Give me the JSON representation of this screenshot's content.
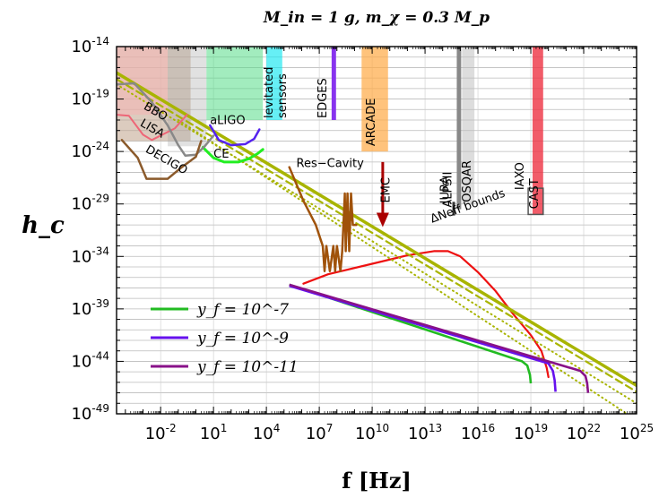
{
  "chart_data": {
    "type": "line",
    "title": "M_in = 1 g, m_χ = 0.3 M_p",
    "xlabel": "f [Hz]",
    "ylabel": "h_c",
    "x_scale": "log",
    "y_scale": "log",
    "xlim_log10": [
      -4.5,
      25
    ],
    "ylim_log10": [
      -49,
      -14
    ],
    "x_ticks": [
      {
        "exp": -2,
        "label_base": "10",
        "label_exp": "-2"
      },
      {
        "exp": 1,
        "label_base": "10",
        "label_exp": "1"
      },
      {
        "exp": 4,
        "label_base": "10",
        "label_exp": "4"
      },
      {
        "exp": 7,
        "label_base": "10",
        "label_exp": "7"
      },
      {
        "exp": 10,
        "label_base": "10",
        "label_exp": "10"
      },
      {
        "exp": 13,
        "label_base": "10",
        "label_exp": "13"
      },
      {
        "exp": 16,
        "label_base": "10",
        "label_exp": "16"
      },
      {
        "exp": 19,
        "label_base": "10",
        "label_exp": "19"
      },
      {
        "exp": 22,
        "label_base": "10",
        "label_exp": "22"
      },
      {
        "exp": 25,
        "label_base": "10",
        "label_exp": "25"
      }
    ],
    "y_ticks": [
      {
        "exp": -14,
        "label_base": "10",
        "label_exp": "-14"
      },
      {
        "exp": -19,
        "label_base": "10",
        "label_exp": "-19"
      },
      {
        "exp": -24,
        "label_base": "10",
        "label_exp": "-24"
      },
      {
        "exp": -29,
        "label_base": "10",
        "label_exp": "-29"
      },
      {
        "exp": -34,
        "label_base": "10",
        "label_exp": "-34"
      },
      {
        "exp": -39,
        "label_base": "10",
        "label_exp": "-39"
      },
      {
        "exp": -44,
        "label_base": "10",
        "label_exp": "-44"
      },
      {
        "exp": -49,
        "label_base": "10",
        "label_exp": "-49"
      }
    ],
    "grid": true,
    "legend_position": "bottom-left",
    "series": [
      {
        "name": "y_f = 10^-7",
        "color": "#22bb22",
        "points_log10": [
          [
            5.3,
            -36.7
          ],
          [
            18.5,
            -44.0
          ],
          [
            18.8,
            -44.4
          ],
          [
            18.95,
            -45.3
          ],
          [
            19.0,
            -46.1
          ]
        ]
      },
      {
        "name": "y_f = 10^-9",
        "color": "#6611ee",
        "points_log10": [
          [
            5.3,
            -36.8
          ],
          [
            20.0,
            -44.2
          ],
          [
            20.25,
            -44.9
          ],
          [
            20.35,
            -45.8
          ],
          [
            20.4,
            -46.9
          ]
        ]
      },
      {
        "name": "y_f = 10^-11",
        "color": "#881188",
        "points_log10": [
          [
            5.3,
            -36.7
          ],
          [
            21.8,
            -44.9
          ],
          [
            22.1,
            -45.4
          ],
          [
            22.2,
            -46.1
          ],
          [
            22.25,
            -47.0
          ]
        ]
      }
    ],
    "extra_curves": [
      {
        "id": "red-signal",
        "color": "#ee1111",
        "points_log10": [
          [
            6.1,
            -36.6
          ],
          [
            7.5,
            -35.7
          ],
          [
            10.0,
            -34.7
          ],
          [
            12.0,
            -33.9
          ],
          [
            13.5,
            -33.5
          ],
          [
            14.3,
            -33.5
          ],
          [
            15.0,
            -34.0
          ],
          [
            16.0,
            -35.5
          ],
          [
            17.0,
            -37.3
          ],
          [
            18.0,
            -39.5
          ],
          [
            19.0,
            -41.5
          ],
          [
            19.6,
            -43.0
          ],
          [
            19.9,
            -44.6
          ],
          [
            20.0,
            -45.5
          ]
        ]
      },
      {
        "id": "delta-neff-bound",
        "color": "#a8b400",
        "width": 3.5,
        "points_log10": [
          [
            -4.5,
            -16.5
          ],
          [
            25,
            -46.3
          ]
        ]
      },
      {
        "id": "delta-neff-bound-dashed",
        "color": "#a8b400",
        "width": 2.2,
        "dash": "8,5",
        "points_log10": [
          [
            -4.5,
            -17.1
          ],
          [
            25,
            -46.9
          ]
        ]
      },
      {
        "id": "delta-neff-bound-dotted",
        "color": "#a8b400",
        "width": 2.0,
        "dash": "1,4",
        "points_log10": [
          [
            -4.5,
            -17.6
          ],
          [
            25,
            -48.0
          ]
        ]
      },
      {
        "id": "delta-neff-bound-dotted-lower",
        "color": "#a8b400",
        "width": 2.0,
        "dash": "1,4",
        "points_log10": [
          [
            -1.0,
            -21.0
          ],
          [
            25,
            -49.6
          ]
        ]
      },
      {
        "id": "res-cavity-curve",
        "color": "#a0520a",
        "width": 2.5,
        "points_log10": [
          [
            5.3,
            -25.5
          ],
          [
            6.1,
            -28.7
          ],
          [
            6.8,
            -31.0
          ],
          [
            7.2,
            -33.0
          ],
          [
            7.3,
            -35.4
          ],
          [
            7.4,
            -33.0
          ],
          [
            7.6,
            -35.4
          ],
          [
            7.8,
            -33.0
          ],
          [
            7.9,
            -35.4
          ],
          [
            8.0,
            -33.0
          ],
          [
            8.2,
            -35.4
          ],
          [
            8.3,
            -33.5
          ],
          [
            8.45,
            -28.0
          ],
          [
            8.5,
            -33.5
          ],
          [
            8.6,
            -28.0
          ],
          [
            8.7,
            -33.5
          ],
          [
            8.8,
            -28.0
          ],
          [
            8.9,
            -31.0
          ],
          [
            9.1,
            -31.0
          ]
        ]
      },
      {
        "id": "aligo-curve",
        "color": "#5522ee",
        "width": 2.5,
        "points_log10": [
          [
            0.8,
            -21.5
          ],
          [
            1.3,
            -22.9
          ],
          [
            2.0,
            -23.4
          ],
          [
            2.8,
            -23.3
          ],
          [
            3.3,
            -22.8
          ],
          [
            3.6,
            -21.9
          ]
        ]
      },
      {
        "id": "ce-curve",
        "color": "#22ee22",
        "width": 3,
        "points_log10": [
          [
            0.4,
            -23.6
          ],
          [
            1.0,
            -24.6
          ],
          [
            1.6,
            -25.0
          ],
          [
            2.4,
            -25.0
          ],
          [
            3.0,
            -24.7
          ],
          [
            3.5,
            -24.2
          ],
          [
            3.8,
            -23.8
          ]
        ]
      },
      {
        "id": "lisa-curve",
        "color": "#ee6677",
        "width": 2,
        "points_log10": [
          [
            -4.5,
            -20.5
          ],
          [
            -3.8,
            -20.6
          ],
          [
            -3.0,
            -22.4
          ],
          [
            -2.5,
            -22.9
          ],
          [
            -1.2,
            -21.8
          ],
          [
            -0.5,
            -20.5
          ]
        ]
      },
      {
        "id": "bbo-curve",
        "color": "#888888",
        "width": 2.5,
        "points_log10": [
          [
            -4.5,
            -17.6
          ],
          [
            -3.5,
            -17.5
          ],
          [
            -2.5,
            -19.3
          ],
          [
            -1.6,
            -21.5
          ],
          [
            -1.0,
            -23.4
          ],
          [
            -0.6,
            -24.4
          ],
          [
            0.0,
            -24.3
          ],
          [
            0.5,
            -23.5
          ],
          [
            1.0,
            -22.5
          ]
        ]
      },
      {
        "id": "decigo-curve",
        "color": "#8b5a2b",
        "width": 2.5,
        "points_log10": [
          [
            -4.2,
            -22.9
          ],
          [
            -3.3,
            -24.6
          ],
          [
            -2.8,
            -26.6
          ],
          [
            -1.6,
            -26.6
          ],
          [
            -0.8,
            -25.5
          ],
          [
            0.0,
            -24.5
          ],
          [
            0.3,
            -23.0
          ]
        ]
      }
    ],
    "bands": [
      {
        "label": "levitated",
        "label2": "sensors",
        "color": "#00e5ee",
        "opacity": 0.6,
        "x_log10": [
          4.0,
          4.9
        ],
        "y_log10": [
          -14,
          -21
        ]
      },
      {
        "label": "EDGES",
        "color": "#8833ee",
        "x_log10": [
          7.7,
          7.95
        ],
        "y_log10": [
          -14,
          -21
        ],
        "style": "line"
      },
      {
        "label": "ARCADE",
        "color": "#ffaa44",
        "opacity": 0.7,
        "x_log10": [
          9.4,
          10.9
        ],
        "y_log10": [
          -14,
          -24
        ]
      },
      {
        "label": "OSQAR",
        "color": "#bbbbbb",
        "opacity": 0.5,
        "x_log10": [
          15.1,
          15.8
        ],
        "y_log10": [
          -14,
          -29
        ]
      },
      {
        "label": "ALPSII",
        "color": "#888888",
        "x_log10": [
          14.8,
          15.05
        ],
        "y_log10": [
          -14,
          -29.5
        ],
        "style": "line"
      },
      {
        "label": "JURA",
        "color": "#333333",
        "x_log10": [
          14.55,
          14.7
        ],
        "y_log10": [
          -28.8,
          -30.1
        ],
        "style": "line"
      },
      {
        "label": "CAST",
        "color": "#ee3344",
        "opacity": 0.8,
        "x_log10": [
          19.1,
          19.7
        ],
        "y_log10": [
          -14,
          -30
        ]
      },
      {
        "label": "IAXO",
        "color": "#555555",
        "x_log10": [
          18.85,
          19.7
        ],
        "y_log10": [
          -27.5,
          -30
        ],
        "style": "box"
      }
    ],
    "detector_bands": [
      {
        "color": "#bfa28a",
        "opacity": 0.55,
        "x_log10": [
          -4.5,
          -0.3
        ],
        "y_log10": [
          -14,
          -23
        ]
      },
      {
        "color": "#f5b5b5",
        "opacity": 0.55,
        "x_log10": [
          -4.5,
          -1.6
        ],
        "y_log10": [
          -14,
          -20.5
        ]
      },
      {
        "color": "#aaaaaa",
        "opacity": 0.35,
        "x_log10": [
          -1.6,
          0.6
        ],
        "y_log10": [
          -14,
          -23.5
        ]
      },
      {
        "color": "#55dd88",
        "opacity": 0.55,
        "x_log10": [
          0.6,
          3.8
        ],
        "y_log10": [
          -14,
          -21
        ]
      }
    ],
    "annotations": [
      {
        "text": "BBO",
        "x_log10": -3.0,
        "y_log10": -19.9,
        "rotate": 30
      },
      {
        "text": "LISA",
        "x_log10": -3.2,
        "y_log10": -21.5,
        "rotate": 30
      },
      {
        "text": "DECIGO",
        "x_log10": -2.9,
        "y_log10": -24.0,
        "rotate": 30
      },
      {
        "text": "aLIGO",
        "x_log10": 0.8,
        "y_log10": -21.4,
        "rotate": 0
      },
      {
        "text": "CE",
        "x_log10": 1.0,
        "y_log10": -24.6,
        "rotate": 0
      },
      {
        "text": "Res−Cavity",
        "x_log10": 5.7,
        "y_log10": -25.5,
        "rotate": 0
      },
      {
        "text": "EMC",
        "x_log10": 11.0,
        "y_log10": -28.9,
        "rotate": -90
      },
      {
        "text": "ΔNeff bounds",
        "x_log10": 13.4,
        "y_log10": -30.8,
        "rotate": -20
      }
    ],
    "emc_arrow": {
      "color": "#aa0000",
      "x_log10": 10.6,
      "y_top_log10": -25.0,
      "y_bottom_log10": -31.2
    }
  }
}
